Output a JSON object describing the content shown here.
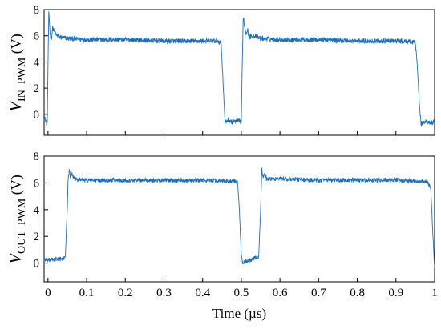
{
  "chart_data": [
    {
      "type": "line",
      "title": "",
      "ylabel": {
        "main": "V",
        "sub": "IN_PWM",
        "unit": " (V)"
      },
      "xlabel": "",
      "xlim": [
        -0.01,
        1.0
      ],
      "ylim": [
        -1.6,
        8
      ],
      "yticks": [
        0,
        2,
        4,
        6,
        8
      ],
      "ytick_labels": [
        "0",
        "2",
        "4",
        "6",
        "8"
      ],
      "color": "#1f6fb7",
      "noise": 0.12,
      "series": [
        {
          "x": [
            -0.01,
            -0.005,
            -0.002,
            0.0,
            0.002,
            0.004,
            0.006,
            0.009,
            0.012,
            0.02,
            0.03,
            0.05,
            0.1,
            0.2,
            0.3,
            0.4,
            0.44,
            0.448,
            0.452,
            0.458,
            0.465,
            0.475,
            0.49,
            0.5,
            0.502,
            0.505,
            0.508,
            0.512,
            0.516,
            0.52,
            0.53,
            0.55,
            0.6,
            0.7,
            0.8,
            0.9,
            0.95,
            0.955,
            0.96,
            0.965,
            0.97,
            0.98,
            0.99,
            1.0
          ],
          "y": [
            -0.2,
            -0.5,
            -0.9,
            3.5,
            7.7,
            7.0,
            6.0,
            5.8,
            6.6,
            6.1,
            5.9,
            5.8,
            5.7,
            5.7,
            5.6,
            5.6,
            5.6,
            5.4,
            3.0,
            -0.7,
            -0.4,
            -0.6,
            -0.5,
            -0.6,
            3.0,
            7.6,
            6.8,
            6.2,
            6.5,
            5.9,
            6.0,
            5.8,
            5.7,
            5.7,
            5.6,
            5.6,
            5.5,
            4.0,
            1.0,
            -0.8,
            -0.6,
            -0.5,
            -0.7,
            -0.5
          ]
        }
      ]
    },
    {
      "type": "line",
      "title": "",
      "ylabel": {
        "main": "V",
        "sub": "OUT_PWM",
        "unit": " (V)"
      },
      "xlabel": "Time (µs)",
      "xlim": [
        -0.01,
        1.0
      ],
      "ylim": [
        -1.4,
        8
      ],
      "yticks": [
        0,
        2,
        4,
        6,
        8
      ],
      "ytick_labels": [
        "0",
        "2",
        "4",
        "6",
        "8"
      ],
      "xticks": [
        0,
        0.1,
        0.2,
        0.3,
        0.4,
        0.5,
        0.6,
        0.7,
        0.8,
        0.9,
        1.0
      ],
      "xtick_labels": [
        "0",
        "0.1",
        "0.2",
        "0.3",
        "0.4",
        "0.5",
        "0.6",
        "0.7",
        "0.8",
        "0.9",
        "1"
      ],
      "color": "#1f6fb7",
      "noise": 0.1,
      "series": [
        {
          "x": [
            -0.01,
            0.0,
            0.02,
            0.04,
            0.045,
            0.05,
            0.052,
            0.055,
            0.058,
            0.062,
            0.07,
            0.1,
            0.2,
            0.3,
            0.4,
            0.49,
            0.495,
            0.5,
            0.503,
            0.51,
            0.53,
            0.545,
            0.55,
            0.553,
            0.556,
            0.56,
            0.565,
            0.6,
            0.7,
            0.8,
            0.9,
            0.98,
            0.99,
            0.995,
            1.0
          ],
          "y": [
            0.3,
            0.2,
            0.3,
            0.3,
            0.6,
            4.0,
            6.2,
            7.0,
            6.4,
            6.6,
            6.3,
            6.2,
            6.2,
            6.2,
            6.2,
            6.1,
            4.0,
            0.6,
            0.0,
            0.1,
            0.3,
            0.5,
            4.0,
            7.0,
            6.4,
            6.8,
            6.3,
            6.3,
            6.2,
            6.2,
            6.2,
            6.1,
            5.6,
            2.5,
            -0.4
          ]
        }
      ]
    }
  ]
}
